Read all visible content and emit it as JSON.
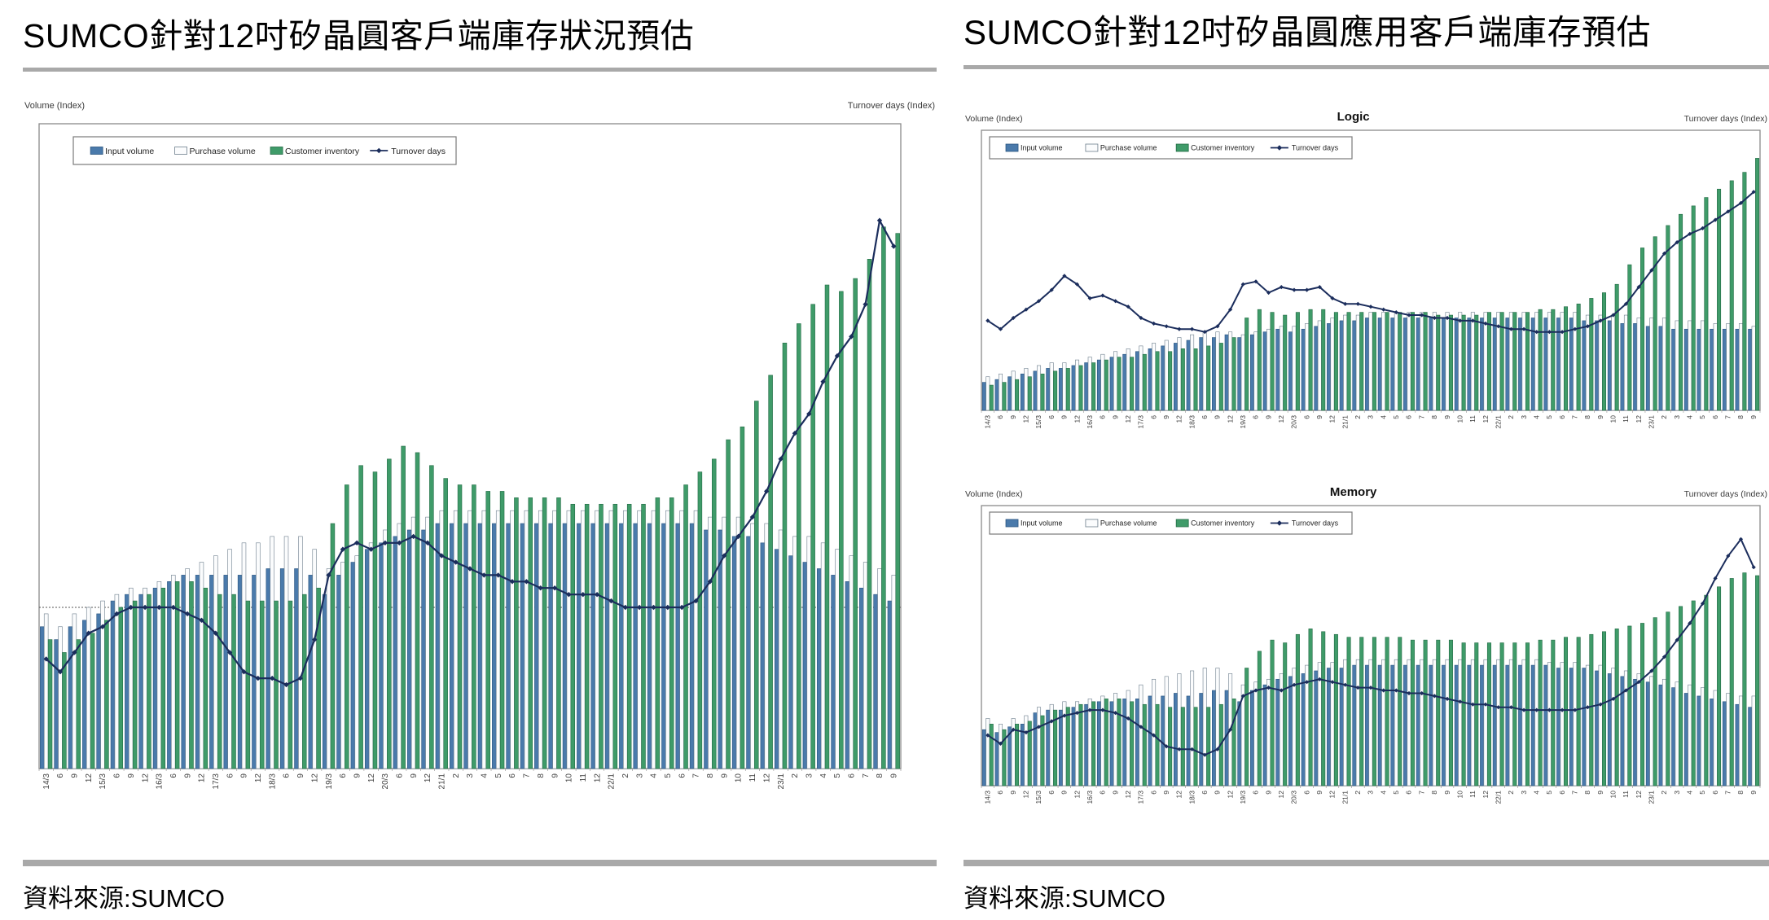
{
  "page": {
    "background": "#ffffff"
  },
  "left_panel": {
    "title": "SUMCO針對12吋矽晶圓客戶端庫存狀況預估",
    "source": "資料來源:SUMCO"
  },
  "right_panel": {
    "title": "SUMCO針對12吋矽晶圓應用客戶端庫存預估",
    "source": "資料來源:SUMCO"
  },
  "colors": {
    "input_bar": "#4a7aab",
    "input_bar_stroke": "#2a5580",
    "purchase_bar": "#fbfcfd",
    "purchase_bar_stroke": "#6e7f8d",
    "inventory_bar": "#3f9b69",
    "inventory_bar_stroke": "#236b45",
    "turnover_line": "#1b2d5c",
    "frame": "#8a8a8a",
    "rule_gray": "#a9a9a9",
    "ref_line": "#555555"
  },
  "chart_data": [
    {
      "type": "bar",
      "name": "total-12inch-customer-inventory",
      "title": "",
      "left_axis_label": "Volume (Index)",
      "right_axis_label": "Turnover days (Index)",
      "ylim": [
        0,
        100
      ],
      "ref_line": 25,
      "legend_position": "top-left",
      "grid": false,
      "categories": [
        "14/3",
        "6",
        "9",
        "12",
        "15/3",
        "6",
        "9",
        "12",
        "16/3",
        "6",
        "9",
        "12",
        "17/3",
        "6",
        "9",
        "12",
        "18/3",
        "6",
        "9",
        "12",
        "19/3",
        "6",
        "9",
        "12",
        "20/3",
        "6",
        "9",
        "12",
        "21/1",
        "2",
        "3",
        "4",
        "5",
        "6",
        "7",
        "8",
        "9",
        "10",
        "11",
        "12",
        "22/1",
        "2",
        "3",
        "4",
        "5",
        "6",
        "7",
        "8",
        "9",
        "10",
        "11",
        "12",
        "23/1",
        "2",
        "3",
        "4",
        "5",
        "6",
        "7",
        "8",
        "9"
      ],
      "series": [
        {
          "name": "Input volume",
          "kind": "bar",
          "color": "#4a7aab",
          "stroke": "#2a5580",
          "values": [
            22,
            20,
            22,
            23,
            24,
            26,
            27,
            27,
            28,
            29,
            30,
            30,
            30,
            30,
            30,
            30,
            31,
            31,
            31,
            30,
            27,
            30,
            32,
            34,
            35,
            36,
            37,
            37,
            38,
            38,
            38,
            38,
            38,
            38,
            38,
            38,
            38,
            38,
            38,
            38,
            38,
            38,
            38,
            38,
            38,
            38,
            38,
            37,
            37,
            36,
            36,
            35,
            34,
            33,
            32,
            31,
            30,
            29,
            28,
            27,
            26
          ]
        },
        {
          "name": "Purchase volume",
          "kind": "bar",
          "color": "#fbfcfd",
          "stroke": "#6e7f8d",
          "values": [
            24,
            22,
            24,
            25,
            26,
            27,
            28,
            28,
            29,
            30,
            31,
            32,
            33,
            34,
            35,
            35,
            36,
            36,
            36,
            34,
            31,
            32,
            33,
            35,
            37,
            38,
            39,
            39,
            40,
            40,
            40,
            40,
            40,
            40,
            40,
            40,
            40,
            40,
            40,
            40,
            40,
            40,
            40,
            40,
            40,
            40,
            40,
            39,
            39,
            39,
            38,
            38,
            37,
            36,
            36,
            35,
            34,
            33,
            32,
            31,
            30
          ]
        },
        {
          "name": "Customer inventory",
          "kind": "bar",
          "color": "#3f9b69",
          "stroke": "#236b45",
          "values": [
            20,
            18,
            20,
            21,
            23,
            25,
            26,
            27,
            28,
            29,
            29,
            28,
            27,
            27,
            26,
            26,
            26,
            26,
            27,
            28,
            38,
            44,
            47,
            46,
            48,
            50,
            49,
            47,
            45,
            44,
            44,
            43,
            43,
            42,
            42,
            42,
            42,
            41,
            41,
            41,
            41,
            41,
            41,
            42,
            42,
            44,
            46,
            48,
            51,
            53,
            57,
            61,
            66,
            69,
            72,
            75,
            74,
            76,
            79,
            84,
            83
          ]
        },
        {
          "name": "Turnover days",
          "kind": "line",
          "color": "#1b2d5c",
          "values": [
            17,
            15,
            18,
            21,
            22,
            24,
            25,
            25,
            25,
            25,
            24,
            23,
            21,
            18,
            15,
            14,
            14,
            13,
            14,
            20,
            30,
            34,
            35,
            34,
            35,
            35,
            36,
            35,
            33,
            32,
            31,
            30,
            30,
            29,
            29,
            28,
            28,
            27,
            27,
            27,
            26,
            25,
            25,
            25,
            25,
            25,
            26,
            29,
            33,
            36,
            39,
            43,
            48,
            52,
            55,
            60,
            64,
            67,
            72,
            85,
            81
          ]
        }
      ]
    },
    {
      "type": "bar",
      "name": "logic-customer-inventory",
      "title": "Logic",
      "left_axis_label": "Volume (Index)",
      "right_axis_label": "Turnover days (Index)",
      "ylim": [
        0,
        100
      ],
      "legend_position": "top-left",
      "grid": false,
      "categories": [
        "14/3",
        "6",
        "9",
        "12",
        "15/3",
        "6",
        "9",
        "12",
        "16/3",
        "6",
        "9",
        "12",
        "17/3",
        "6",
        "9",
        "12",
        "18/3",
        "6",
        "9",
        "12",
        "19/3",
        "6",
        "9",
        "12",
        "20/3",
        "6",
        "9",
        "12",
        "21/1",
        "2",
        "3",
        "4",
        "5",
        "6",
        "7",
        "8",
        "9",
        "10",
        "11",
        "12",
        "22/1",
        "2",
        "3",
        "4",
        "5",
        "6",
        "7",
        "8",
        "9",
        "10",
        "11",
        "12",
        "23/1",
        "2",
        "3",
        "4",
        "5",
        "6",
        "7",
        "8",
        "9"
      ],
      "series": [
        {
          "name": "Input volume",
          "kind": "bar",
          "color": "#4a7aab",
          "stroke": "#2a5580",
          "values": [
            10,
            11,
            12,
            13,
            14,
            15,
            15,
            16,
            17,
            18,
            19,
            20,
            21,
            22,
            23,
            24,
            25,
            26,
            26,
            27,
            26,
            27,
            28,
            29,
            28,
            29,
            30,
            31,
            32,
            32,
            33,
            33,
            33,
            33,
            33,
            33,
            33,
            33,
            33,
            33,
            33,
            33,
            33,
            33,
            33,
            33,
            33,
            32,
            32,
            32,
            31,
            31,
            30,
            30,
            29,
            29,
            29,
            29,
            29,
            29,
            29
          ]
        },
        {
          "name": "Purchase volume",
          "kind": "bar",
          "color": "#fbfcfd",
          "stroke": "#6e7f8d",
          "values": [
            12,
            13,
            14,
            15,
            16,
            17,
            17,
            18,
            19,
            20,
            21,
            22,
            23,
            24,
            25,
            26,
            27,
            28,
            28,
            28,
            27,
            28,
            29,
            30,
            30,
            31,
            32,
            33,
            34,
            34,
            35,
            35,
            35,
            35,
            35,
            35,
            35,
            35,
            35,
            35,
            35,
            35,
            35,
            35,
            35,
            35,
            35,
            34,
            34,
            34,
            34,
            33,
            33,
            33,
            32,
            32,
            32,
            31,
            31,
            31,
            30
          ]
        },
        {
          "name": "Customer inventory",
          "kind": "bar",
          "color": "#3f9b69",
          "stroke": "#236b45",
          "values": [
            9,
            10,
            11,
            12,
            13,
            14,
            15,
            16,
            17,
            18,
            19,
            19,
            20,
            21,
            21,
            22,
            22,
            23,
            24,
            26,
            33,
            36,
            35,
            34,
            35,
            36,
            36,
            35,
            35,
            35,
            35,
            35,
            35,
            35,
            35,
            34,
            34,
            34,
            34,
            35,
            35,
            35,
            35,
            36,
            36,
            37,
            38,
            40,
            42,
            45,
            52,
            58,
            62,
            66,
            70,
            73,
            76,
            79,
            82,
            85,
            90
          ]
        },
        {
          "name": "Turnover days",
          "kind": "line",
          "color": "#1b2d5c",
          "values": [
            32,
            29,
            33,
            36,
            39,
            43,
            48,
            45,
            40,
            41,
            39,
            37,
            33,
            31,
            30,
            29,
            29,
            28,
            30,
            36,
            45,
            46,
            42,
            44,
            43,
            43,
            44,
            40,
            38,
            38,
            37,
            36,
            35,
            34,
            34,
            33,
            33,
            32,
            32,
            31,
            30,
            29,
            29,
            28,
            28,
            28,
            29,
            30,
            32,
            34,
            38,
            44,
            50,
            56,
            60,
            63,
            65,
            68,
            71,
            74,
            78
          ]
        }
      ]
    },
    {
      "type": "bar",
      "name": "memory-customer-inventory",
      "title": "Memory",
      "left_axis_label": "Volume (Index)",
      "right_axis_label": "Turnover days (Index)",
      "ylim": [
        0,
        100
      ],
      "legend_position": "top-left",
      "grid": false,
      "categories": [
        "14/3",
        "6",
        "9",
        "12",
        "15/3",
        "6",
        "9",
        "12",
        "16/3",
        "6",
        "9",
        "12",
        "17/3",
        "6",
        "9",
        "12",
        "18/3",
        "6",
        "9",
        "12",
        "19/3",
        "6",
        "9",
        "12",
        "20/3",
        "6",
        "9",
        "12",
        "21/1",
        "2",
        "3",
        "4",
        "5",
        "6",
        "7",
        "8",
        "9",
        "10",
        "11",
        "12",
        "22/1",
        "2",
        "3",
        "4",
        "5",
        "6",
        "7",
        "8",
        "9",
        "10",
        "11",
        "12",
        "23/1",
        "2",
        "3",
        "4",
        "5",
        "6",
        "7",
        "8",
        "9"
      ],
      "series": [
        {
          "name": "Input volume",
          "kind": "bar",
          "color": "#4a7aab",
          "stroke": "#2a5580",
          "values": [
            20,
            19,
            21,
            22,
            26,
            27,
            27,
            28,
            29,
            30,
            30,
            31,
            31,
            32,
            32,
            33,
            32,
            33,
            34,
            34,
            30,
            34,
            36,
            38,
            39,
            40,
            41,
            42,
            42,
            43,
            43,
            43,
            43,
            43,
            43,
            43,
            43,
            43,
            43,
            43,
            43,
            43,
            43,
            43,
            43,
            42,
            42,
            42,
            41,
            40,
            39,
            38,
            37,
            36,
            35,
            33,
            32,
            31,
            30,
            29,
            28
          ]
        },
        {
          "name": "Purchase volume",
          "kind": "bar",
          "color": "#fbfcfd",
          "stroke": "#6e7f8d",
          "values": [
            24,
            22,
            24,
            25,
            28,
            29,
            30,
            30,
            31,
            32,
            33,
            34,
            36,
            38,
            39,
            40,
            41,
            42,
            42,
            40,
            36,
            37,
            38,
            40,
            42,
            43,
            44,
            44,
            45,
            45,
            45,
            45,
            45,
            45,
            45,
            45,
            45,
            45,
            45,
            45,
            45,
            45,
            45,
            45,
            44,
            44,
            44,
            43,
            43,
            42,
            41,
            40,
            39,
            38,
            37,
            36,
            35,
            34,
            33,
            32,
            32
          ]
        },
        {
          "name": "Customer inventory",
          "kind": "bar",
          "color": "#3f9b69",
          "stroke": "#236b45",
          "values": [
            22,
            20,
            22,
            23,
            25,
            27,
            28,
            29,
            30,
            31,
            31,
            30,
            29,
            29,
            28,
            28,
            28,
            28,
            29,
            31,
            42,
            48,
            52,
            51,
            54,
            56,
            55,
            54,
            53,
            53,
            53,
            53,
            53,
            52,
            52,
            52,
            52,
            51,
            51,
            51,
            51,
            51,
            51,
            52,
            52,
            53,
            53,
            54,
            55,
            56,
            57,
            58,
            60,
            62,
            64,
            66,
            68,
            71,
            74,
            76,
            75
          ]
        },
        {
          "name": "Turnover days",
          "kind": "line",
          "color": "#1b2d5c",
          "values": [
            18,
            15,
            20,
            19,
            21,
            23,
            25,
            26,
            27,
            27,
            26,
            24,
            21,
            18,
            14,
            13,
            13,
            11,
            13,
            20,
            32,
            34,
            35,
            34,
            36,
            37,
            38,
            37,
            36,
            35,
            35,
            34,
            34,
            33,
            33,
            32,
            31,
            30,
            29,
            29,
            28,
            28,
            27,
            27,
            27,
            27,
            27,
            28,
            29,
            31,
            34,
            37,
            41,
            46,
            52,
            58,
            65,
            74,
            82,
            88,
            78
          ]
        }
      ]
    }
  ]
}
